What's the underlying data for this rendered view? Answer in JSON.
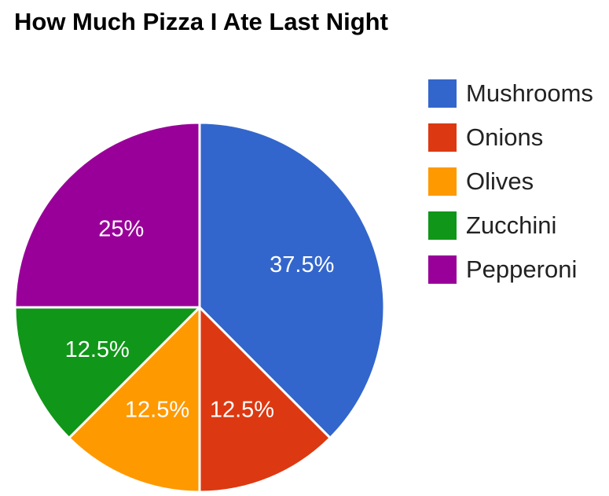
{
  "chart_data": {
    "type": "pie",
    "title": "How Much Pizza I Ate Last Night",
    "categories": [
      "Mushrooms",
      "Onions",
      "Olives",
      "Zucchini",
      "Pepperoni"
    ],
    "values": [
      37.5,
      12.5,
      12.5,
      12.5,
      25
    ],
    "labels": [
      "37.5%",
      "12.5%",
      "12.5%",
      "12.5%",
      "25%"
    ],
    "colors": [
      "#3366cc",
      "#dc3912",
      "#ff9900",
      "#109618",
      "#990099"
    ],
    "legend_position": "right",
    "start": "top, clockwise"
  }
}
